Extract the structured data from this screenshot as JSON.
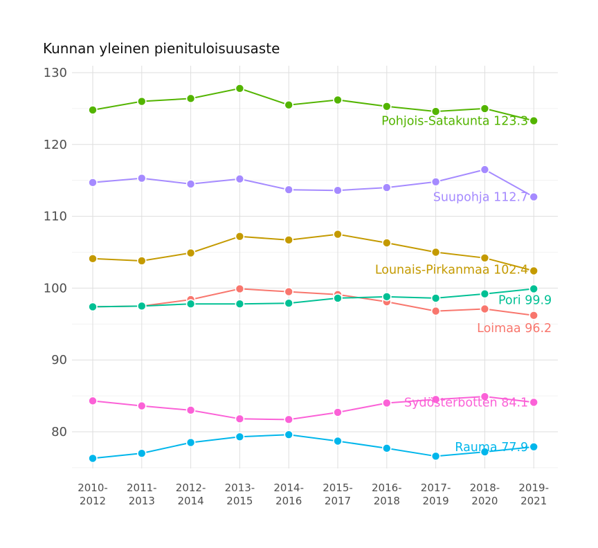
{
  "chart_data": {
    "type": "line",
    "title": "Kunnan yleinen pienituloisuusaste",
    "xlabel": "",
    "ylabel": "",
    "x": [
      "2010-2012",
      "2011-2013",
      "2012-2014",
      "2013-2015",
      "2014-2016",
      "2015-2017",
      "2016-2018",
      "2017-2019",
      "2018-2020",
      "2019-2021"
    ],
    "x_tick_lines": [
      [
        "2010-",
        "2012"
      ],
      [
        "2011-",
        "2013"
      ],
      [
        "2012-",
        "2014"
      ],
      [
        "2013-",
        "2015"
      ],
      [
        "2014-",
        "2016"
      ],
      [
        "2015-",
        "2017"
      ],
      [
        "2016-",
        "2018"
      ],
      [
        "2017-",
        "2019"
      ],
      [
        "2018-",
        "2020"
      ],
      [
        "2019-",
        "2021"
      ]
    ],
    "ylim": [
      75,
      130
    ],
    "yticks": [
      80,
      90,
      100,
      110,
      120,
      130
    ],
    "grid": true,
    "legend": "none",
    "series": [
      {
        "name": "Pohjois-Satakunta",
        "color": "#53b400",
        "values": [
          124.8,
          126.0,
          126.4,
          127.8,
          125.5,
          126.2,
          125.3,
          124.6,
          125.0,
          123.3
        ],
        "end_label": "Pohjois-Satakunta 123.3"
      },
      {
        "name": "Suupohja",
        "color": "#a58aff",
        "values": [
          114.7,
          115.3,
          114.5,
          115.2,
          113.7,
          113.6,
          114.0,
          114.8,
          116.5,
          112.7
        ],
        "end_label": "Suupohja 112.7"
      },
      {
        "name": "Lounais-Pirkanmaa",
        "color": "#c49a00",
        "values": [
          104.1,
          103.8,
          104.9,
          107.2,
          106.7,
          107.5,
          106.3,
          105.0,
          104.2,
          102.4
        ],
        "end_label": "Lounais-Pirkanmaa 102.4"
      },
      {
        "name": "Loimaa",
        "color": "#f8766d",
        "values": [
          97.4,
          97.5,
          98.4,
          99.9,
          99.5,
          99.1,
          98.1,
          96.8,
          97.1,
          96.2
        ],
        "end_label": "Loimaa 96.2"
      },
      {
        "name": "Pori",
        "color": "#00c094",
        "values": [
          97.4,
          97.5,
          97.8,
          97.8,
          97.9,
          98.6,
          98.8,
          98.6,
          99.2,
          99.9
        ],
        "end_label": "Pori 99.9"
      },
      {
        "name": "Sydösterbotten",
        "color": "#fb61d7",
        "values": [
          84.3,
          83.6,
          83.0,
          81.8,
          81.7,
          82.7,
          84.0,
          84.5,
          84.9,
          84.1
        ],
        "end_label": "Sydösterbotten 84.1"
      },
      {
        "name": "Rauma",
        "color": "#00b6eb",
        "values": [
          76.3,
          77.0,
          78.5,
          79.3,
          79.6,
          78.7,
          77.7,
          76.6,
          77.2,
          77.9
        ],
        "end_label": "Rauma 77.9"
      }
    ]
  }
}
